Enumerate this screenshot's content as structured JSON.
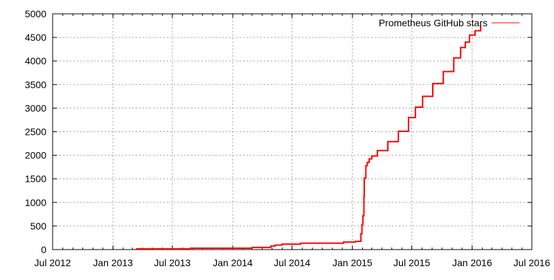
{
  "chart_data": {
    "type": "line",
    "title": "",
    "xlabel": "",
    "ylabel": "",
    "xlim": [
      "2012-07-01",
      "2016-07-01"
    ],
    "ylim": [
      0,
      5000
    ],
    "grid": true,
    "legend_position": "top-right",
    "x_ticks": [
      "Jul 2012",
      "Jan 2013",
      "Jul 2013",
      "Jan 2014",
      "Jul 2014",
      "Jan 2015",
      "Jul 2015",
      "Jan 2016",
      "Jul 2016"
    ],
    "x_tick_dates": [
      "2012-07-01",
      "2013-01-01",
      "2013-07-01",
      "2014-01-01",
      "2014-07-01",
      "2015-01-01",
      "2015-07-01",
      "2016-01-01",
      "2016-07-01"
    ],
    "y_ticks": [
      0,
      500,
      1000,
      1500,
      2000,
      2500,
      3000,
      3500,
      4000,
      4500,
      5000
    ],
    "series": [
      {
        "name": "Prometheus GitHub stars",
        "color": "#ff0000",
        "x": [
          "2013-03-13",
          "2013-08-25",
          "2014-03-01",
          "2014-04-27",
          "2014-05-10",
          "2014-05-31",
          "2014-07-27",
          "2014-12-05",
          "2015-01-10",
          "2015-01-27",
          "2015-01-30",
          "2015-02-02",
          "2015-02-05",
          "2015-02-06",
          "2015-02-11",
          "2015-02-15",
          "2015-02-21",
          "2015-03-01",
          "2015-03-18",
          "2015-04-19",
          "2015-05-21",
          "2015-06-21",
          "2015-07-12",
          "2015-08-03",
          "2015-09-03",
          "2015-10-05",
          "2015-11-06",
          "2015-11-27",
          "2015-12-11",
          "2015-12-24",
          "2016-01-10",
          "2016-01-27"
        ],
        "y": [
          15,
          30,
          45,
          75,
          95,
          115,
          135,
          160,
          175,
          335,
          525,
          715,
          1120,
          1515,
          1780,
          1850,
          1925,
          1985,
          2100,
          2290,
          2510,
          2800,
          3020,
          3250,
          3520,
          3775,
          4065,
          4285,
          4400,
          4550,
          4640,
          4750
        ]
      }
    ]
  }
}
